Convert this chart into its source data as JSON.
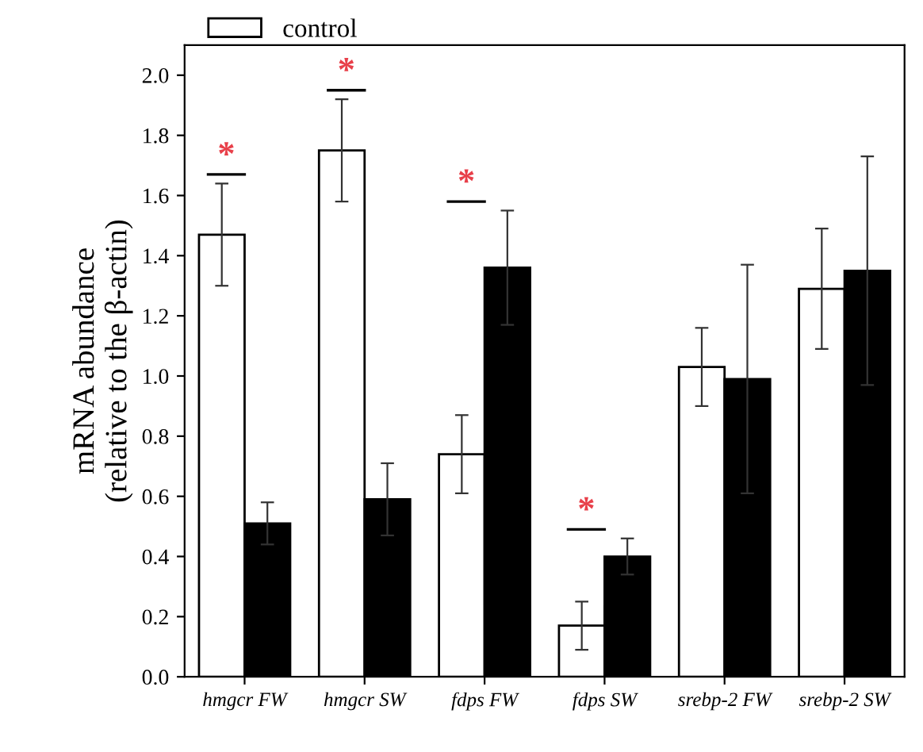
{
  "chart_data": {
    "type": "bar",
    "ylabel": "mRNA abundance\n(relative to the β-actin)",
    "categories": [
      "hmgcr FW",
      "hmgcr SW",
      "fdps FW",
      "fdps SW",
      "srebp-2 FW",
      "srebp-2 SW"
    ],
    "series": [
      {
        "name": "control",
        "color": "#ffffff",
        "values": [
          1.47,
          1.75,
          0.74,
          0.17,
          1.03,
          1.29
        ],
        "errors": [
          0.17,
          0.17,
          0.13,
          0.08,
          0.13,
          0.2
        ]
      },
      {
        "color": "#000000",
        "values": [
          0.51,
          0.59,
          1.36,
          0.4,
          0.99,
          1.35
        ],
        "errors": [
          0.07,
          0.12,
          0.19,
          0.06,
          0.38,
          0.38
        ]
      }
    ],
    "ylim": [
      0,
      2.1
    ],
    "yticks": [
      {
        "value": 0,
        "label": "0.0"
      },
      0.2,
      0.4,
      0.6,
      0.8,
      {
        "value": 1,
        "label": "1.0"
      },
      1.2,
      1.4,
      1.6,
      1.8,
      {
        "value": 2,
        "label": "2.0"
      }
    ],
    "annotations": [
      "*",
      "*",
      "*",
      "*"
    ],
    "legend": "top left",
    "grid": false
  }
}
